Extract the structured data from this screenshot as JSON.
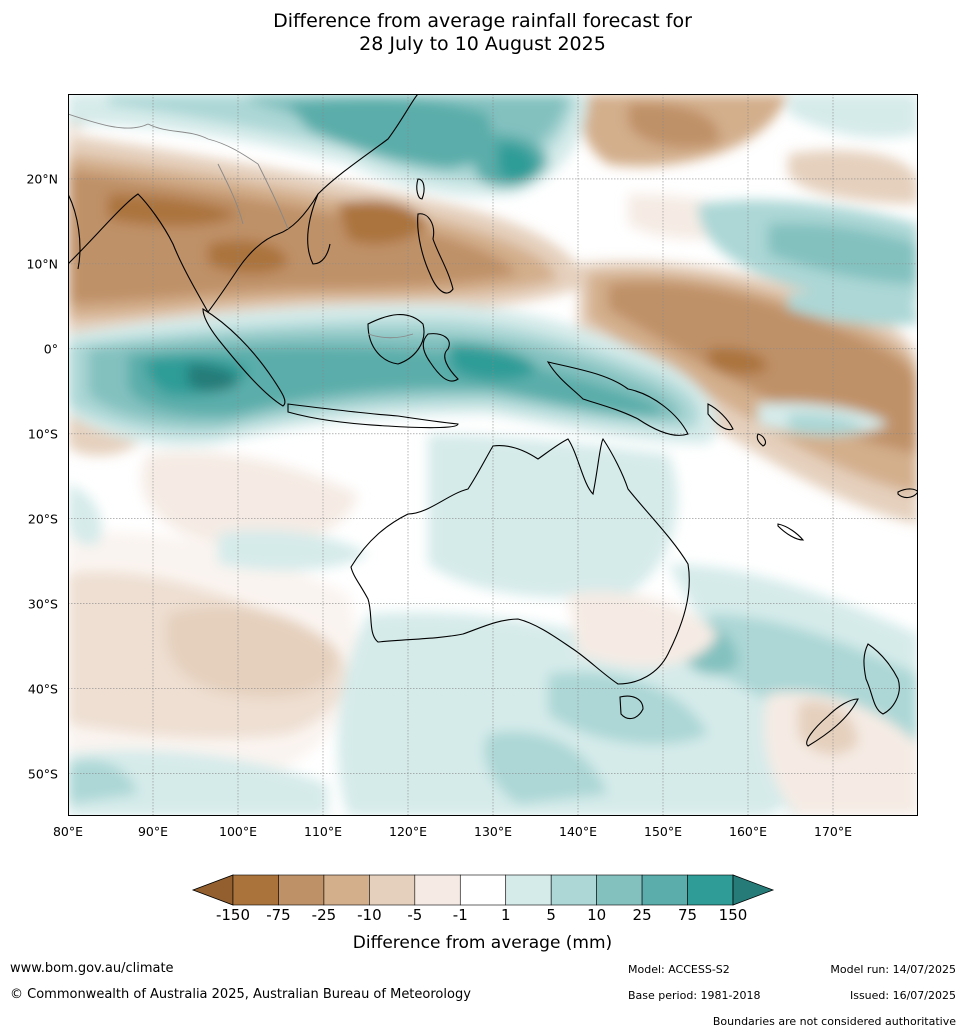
{
  "title": {
    "line1": "Difference from average rainfall forecast for",
    "line2": "28 July to 10 August 2025"
  },
  "map": {
    "lon_range": [
      80,
      180
    ],
    "lat_range": [
      -55,
      30
    ],
    "lat_labels": [
      {
        "lat": 20,
        "label": "20°N"
      },
      {
        "lat": 10,
        "label": "10°N"
      },
      {
        "lat": 0,
        "label": "0°"
      },
      {
        "lat": -10,
        "label": "10°S"
      },
      {
        "lat": -20,
        "label": "20°S"
      },
      {
        "lat": -30,
        "label": "30°S"
      },
      {
        "lat": -40,
        "label": "40°S"
      },
      {
        "lat": -50,
        "label": "50°S"
      }
    ],
    "lon_labels": [
      {
        "lon": 80,
        "label": "80°E"
      },
      {
        "lon": 90,
        "label": "90°E"
      },
      {
        "lon": 100,
        "label": "100°E"
      },
      {
        "lon": 110,
        "label": "110°E"
      },
      {
        "lon": 120,
        "label": "120°E"
      },
      {
        "lon": 130,
        "label": "130°E"
      },
      {
        "lon": 140,
        "label": "140°E"
      },
      {
        "lon": 150,
        "label": "150°E"
      },
      {
        "lon": 160,
        "label": "160°E"
      },
      {
        "lon": 170,
        "label": "170°E"
      }
    ]
  },
  "colorbar": {
    "title": "Difference from average (mm)",
    "ticks": [
      "-150",
      "-75",
      "-25",
      "-10",
      "-5",
      "-1",
      "1",
      "5",
      "10",
      "25",
      "75",
      "150"
    ],
    "colors": {
      "dry_extend": "#935f2f",
      "dry5": "#ab733c",
      "dry4": "#bf9167",
      "dry3": "#d3af8c",
      "dry2": "#e5d0bd",
      "dry1": "#f5ebe4",
      "neutral": "#ffffff",
      "wet1": "#d5ebea",
      "wet2": "#acd7d6",
      "wet3": "#83c1bf",
      "wet4": "#5aadaa",
      "wet5": "#2f9c97",
      "wet_extend": "#267b78"
    }
  },
  "footer": {
    "url": "www.bom.gov.au/climate",
    "copyright": "© Commonwealth of Australia 2025, Australian Bureau of Meteorology",
    "model": "Model: ACCESS-S2",
    "base_period": "Base period: 1981-2018",
    "model_run": "Model run: 14/07/2025",
    "issued": "Issued: 16/07/2025",
    "disclaimer": "Boundaries are not considered authoritative"
  }
}
